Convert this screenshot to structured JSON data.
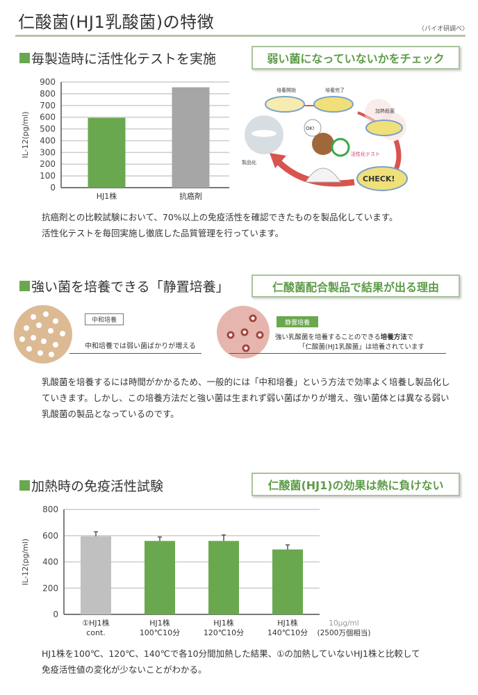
{
  "header": {
    "title": "仁酸菌(HJ1乳酸菌)の特徴",
    "source": "〈バイオ研調べ〉"
  },
  "section1": {
    "heading": "毎製造時に活性化テストを実施",
    "callout": "弱い菌になっていないかをチェック",
    "illustration": {
      "labels": [
        "培養開始",
        "培養完了",
        "加熱殺菌",
        "活性化テスト",
        "製品化",
        "OK!",
        "CHECK!"
      ]
    },
    "paragraph": [
      "抗癌剤との比較試験において、70%以上の免疫活性を確認できたものを製品化しています。",
      "活性化テストを毎回実施し徹底した品質管理を行っています。"
    ]
  },
  "section2": {
    "heading": "強い菌を培養できる「静置培養」",
    "callout": "仁酸菌配合製品で結果が出る理由",
    "left": {
      "tag": "中和培養",
      "text": "中和培養では弱い菌ばかりが増える"
    },
    "right": {
      "tag": "静置培養",
      "line1_a": "強い乳酸菌を培養することのできる",
      "line1_b": "培養方法",
      "line1_c": "で",
      "line2": "「仁酸菌(HJ1乳酸菌」は培養されています"
    },
    "paragraph": [
      "乳酸菌を培養するには時間がかかるため、一般的には「中和培養」という方法で効率よく培養し製品化し",
      "ていきます。しかし、この培養方法だと強い菌は生まれず弱い菌ばかりが増え、強い菌体とは異なる弱い",
      "乳酸菌の製品となっているのです。"
    ]
  },
  "section3": {
    "heading": "加熱時の免疫活性試験",
    "callout": "仁酸菌(HJ1)の効果は熱に負けない",
    "unit_note": [
      "10μg/ml",
      "(2500万個相当)"
    ],
    "paragraph": [
      "HJ1株を100℃、120℃、140℃で各10分間加熱した結果、①の加熱していないHJ1株と比較して",
      "免疫活性値の変化が少ないことがわかる。"
    ]
  },
  "chart_data": [
    {
      "type": "bar",
      "title": "",
      "ylabel": "IL-12(pg/ml)",
      "xlabel": "",
      "ylim": [
        0,
        900
      ],
      "yticks": [
        0,
        100,
        200,
        300,
        400,
        500,
        600,
        700,
        800,
        900
      ],
      "grid": true,
      "categories": [
        "HJ1株",
        "抗癌剤"
      ],
      "values": [
        595,
        855
      ],
      "colors": [
        "#6aa84f",
        "#a6a6a6"
      ]
    },
    {
      "type": "bar",
      "title": "",
      "ylabel": "IL-12(pg/ml)",
      "xlabel": "",
      "ylim": [
        0,
        800
      ],
      "yticks": [
        0,
        200,
        400,
        600,
        800
      ],
      "grid": true,
      "categories": [
        [
          "①HJ1株",
          "cont."
        ],
        [
          "HJ1株",
          "100℃10分"
        ],
        [
          "HJ1株",
          "120℃10分"
        ],
        [
          "HJ1株",
          "140℃10分"
        ]
      ],
      "values": [
        595,
        560,
        560,
        495
      ],
      "errors": [
        35,
        30,
        45,
        35
      ],
      "colors": [
        "#c0c0c0",
        "#6aa84f",
        "#6aa84f",
        "#6aa84f"
      ]
    }
  ],
  "colors": {
    "accent": "#6aa84f",
    "callout_border": "#a9c49a",
    "rule": "#b9c3a8"
  }
}
